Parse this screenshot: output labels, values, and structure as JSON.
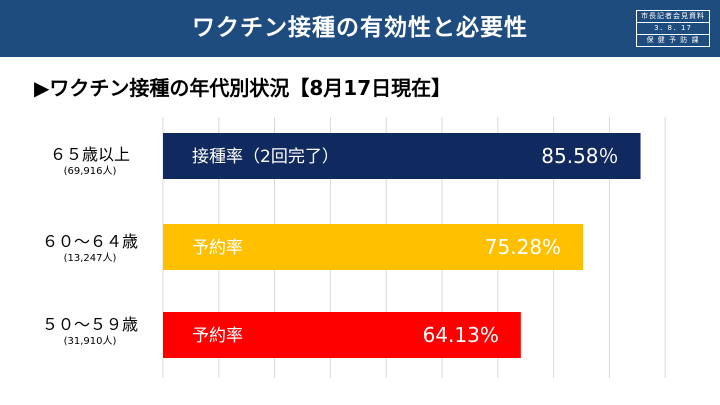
{
  "header": {
    "title": "ワクチン接種の有効性と必要性",
    "stamp": [
      "市長記者会見資料",
      "3．8．17",
      "保 健 予 防 課"
    ],
    "color": "#1f4c7f"
  },
  "subtitle": "▶ワクチン接種の年代別状況【8月17日現在】",
  "chart_data": {
    "type": "bar",
    "orientation": "horizontal",
    "xlim": [
      0,
      100
    ],
    "grid": true,
    "categories": [
      "６５歳以上",
      "６０～６４歳",
      "５０～５９歳"
    ],
    "category_counts": [
      "(69,916人)",
      "(13,247人)",
      "(31,910人)"
    ],
    "series": [
      {
        "bar_labels": [
          "接種率（2回完了）",
          "予約率",
          "予約率"
        ],
        "value_labels": [
          "85.58％",
          "75.28%",
          "64.13%"
        ],
        "values": [
          85.58,
          75.28,
          64.13
        ],
        "colors": [
          "#102a5f",
          "#ffc000",
          "#ff0000"
        ]
      }
    ]
  }
}
